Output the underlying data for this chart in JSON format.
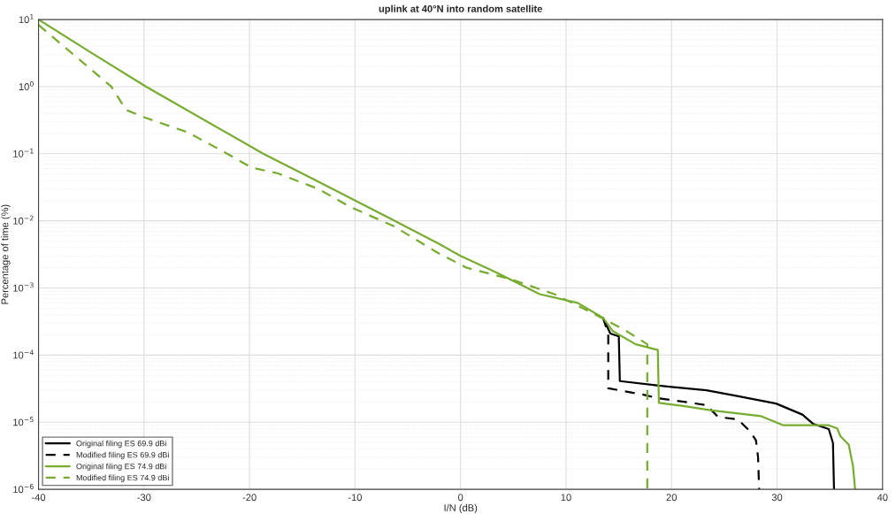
{
  "chart_data": {
    "type": "line",
    "title": "uplink at 40°N into random satellite",
    "xlabel": "I/N (dB)",
    "ylabel": "Percentage of time (%)",
    "log": "y",
    "grid": true,
    "legend": "bottom left",
    "xlim": [
      -40,
      40
    ],
    "xticks": [
      -40,
      -30,
      -20,
      -10,
      0,
      10,
      20,
      30,
      40
    ],
    "ylim": [
      1e-06,
      10
    ],
    "yticks": [
      {
        "value": 1e-06,
        "label": "10$^{−6}$"
      },
      {
        "value": 1e-05,
        "label": "10$^{−5}$"
      },
      {
        "value": 0.0001,
        "label": "10$^{−4}$"
      },
      {
        "value": 0.001,
        "label": "10$^{−3}$"
      },
      {
        "value": 0.01,
        "label": "10$^{−2}$"
      },
      {
        "value": 0.1,
        "label": "10$^{−1}$"
      },
      {
        "value": 1,
        "label": "10$^{0}$"
      },
      {
        "value": 10,
        "label": "10$^{1}$"
      }
    ],
    "series": [
      {
        "name": "Original filing ES 69.9 dBi",
        "color": "#000000",
        "line_style": "solid",
        "x": [
          13.5,
          14.2,
          15.0,
          15.1,
          18.8,
          23.3,
          26.0,
          29.9,
          32.4,
          33.4,
          34.9,
          35.3,
          35.4
        ],
        "values": [
          0.00036,
          0.00021,
          0.00019,
          4.1e-05,
          3.5e-05,
          3e-05,
          2.5e-05,
          1.9e-05,
          1.3e-05,
          9.5e-06,
          7.9e-06,
          4.9e-06,
          1e-06
        ]
      },
      {
        "name": "Modified filing ES 69.9 dBi",
        "color": "#000000",
        "line_style": "dashed",
        "x": [
          13.5,
          14.0,
          14.0,
          17.2,
          18.6,
          23.3,
          24.4,
          26.3,
          27.4,
          28.0,
          28.2,
          28.3
        ],
        "values": [
          0.00036,
          0.00021,
          3.2e-05,
          2.6e-05,
          2.3e-05,
          1.8e-05,
          1.2e-05,
          1.1e-05,
          7.4e-06,
          5.4e-06,
          3e-06,
          1e-06
        ]
      },
      {
        "name": "Original filing ES 74.9 dBi",
        "color": "#77ac30",
        "line_style": "solid",
        "x": [
          -40,
          -35,
          -29.8,
          -18.7,
          -13.7,
          -6.5,
          -2.1,
          0,
          3.4,
          7.5,
          11.1,
          13.5,
          14.4,
          16.6,
          18.7,
          18.8,
          21.1,
          23.8,
          28.5,
          30.6,
          34.9,
          35.7,
          36.0,
          36.8,
          37.2,
          37.4
        ],
        "values": [
          10,
          3.2,
          1.0,
          0.1,
          0.04,
          0.0105,
          0.0046,
          0.003,
          0.0017,
          0.00081,
          0.0006,
          0.00036,
          0.00023,
          0.000145,
          0.000119,
          1.94e-05,
          1.75e-05,
          1.5e-05,
          1.23e-05,
          9e-06,
          9e-06,
          8.1e-06,
          6.2e-06,
          4.6e-06,
          2.2e-06,
          1e-06
        ]
      },
      {
        "name": "Modified filing ES 74.9 dBi",
        "color": "#77ac30",
        "line_style": "dashed",
        "x": [
          -40,
          -33.1,
          -31.7,
          -30.0,
          -25.9,
          -22.0,
          -19.8,
          -17.3,
          -13.5,
          -10.4,
          -6.3,
          -2.1,
          0.6,
          4.7,
          8.9,
          12.8,
          15.5,
          17.7,
          17.7
        ],
        "values": [
          8.3,
          1.0,
          0.45,
          0.35,
          0.21,
          0.098,
          0.062,
          0.051,
          0.03,
          0.016,
          0.0083,
          0.0033,
          0.002,
          0.00136,
          0.00081,
          0.0004,
          0.00024,
          0.000145,
          1e-06
        ]
      }
    ]
  }
}
